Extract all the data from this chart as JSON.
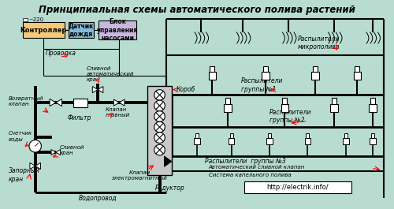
{
  "title": "Принципиальная схемы автоматического полива растений",
  "bg_color": "#b8ddd0",
  "box_controller_color": "#f5c97a",
  "box_rain_color": "#82bcd8",
  "box_pump_color": "#c8b8e0",
  "box_koob_color": "#c8c8c8",
  "url_text": "http://electrik.info/",
  "labels": {
    "controller": "Контроллер",
    "rain": "Датчик\nдождя",
    "pump": "Блок\nуправления\nнасосами",
    "provodka": "Проводка",
    "koob": "Короб",
    "vozvrat": "Возвратный\nклапан",
    "schetchik": "Счетчик\nводы",
    "zapor": "Запорный\nкран",
    "vodo": "Водопровод",
    "filtr": "Фильтр",
    "sliv_auto": "Сливной\nавтоматический\nкран",
    "klap_main": "Клапан\nглавный",
    "sliv_kran": "Сливной\nкран",
    "klap_em": "Клапан\nэлектромагнитный",
    "reduktor": "Редуктор",
    "raspyl_micro": "Распылители\nмикрополива",
    "raspyl1": "Распылители\nгруппы №1",
    "raspyl2": "Распылители\nгруппы №2",
    "raspyl3": "Распылители  группы №3",
    "avto_sliv": "Автоматический сливной клапан",
    "kapel": "Система капельного полива",
    "volt": "~220"
  }
}
